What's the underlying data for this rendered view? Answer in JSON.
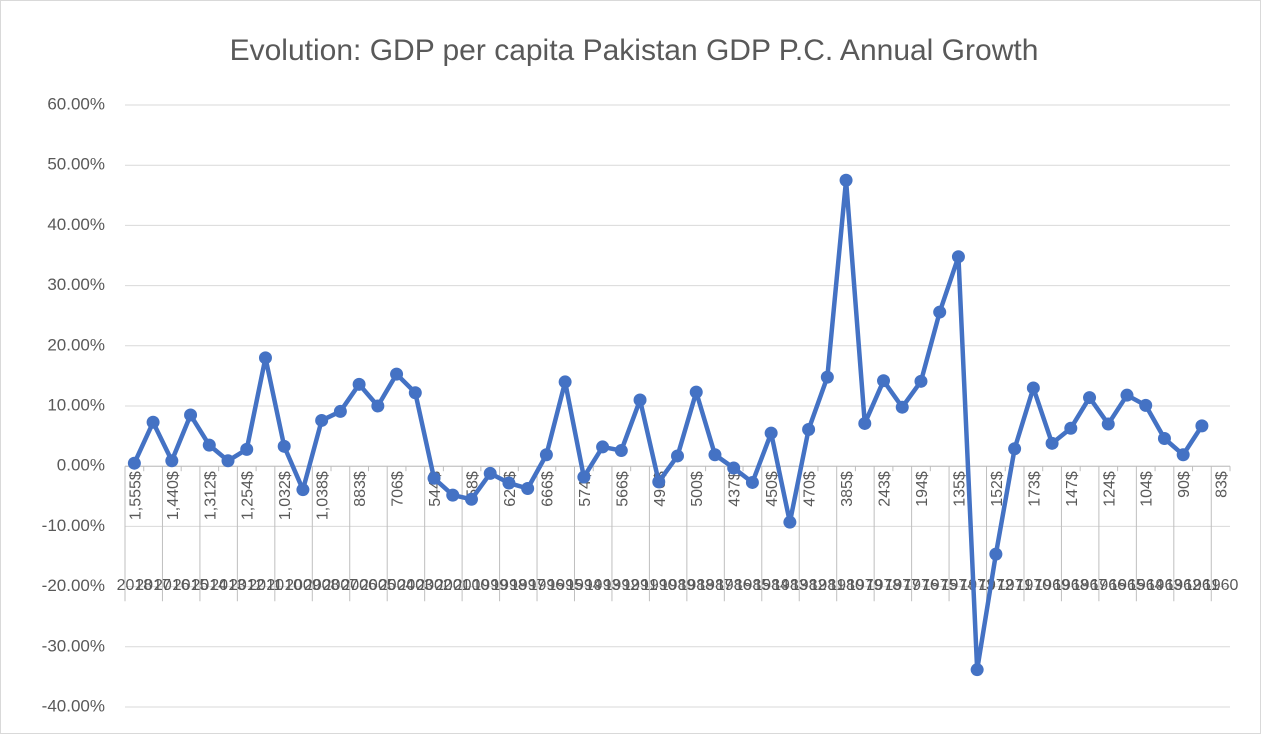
{
  "chart_data": {
    "type": "line",
    "title": "Evolution: GDP per capita Pakistan GDP P.C. Annual Growth",
    "categories": [
      "2018",
      "2017",
      "2016",
      "2015",
      "2014",
      "2013",
      "2012",
      "2011",
      "2010",
      "2009",
      "2008",
      "2007",
      "2006",
      "2005",
      "2004",
      "2003",
      "2002",
      "2001",
      "2000",
      "1999",
      "1998",
      "1997",
      "1996",
      "1995",
      "1994",
      "1993",
      "1992",
      "1991",
      "1990",
      "1989",
      "1988",
      "1987",
      "1986",
      "1985",
      "1984",
      "1983",
      "1982",
      "1981",
      "1980",
      "1979",
      "1978",
      "1977",
      "1976",
      "1975",
      "1974",
      "1973",
      "1972",
      "1971",
      "1970",
      "1969",
      "1968",
      "1967",
      "1966",
      "1965",
      "1964",
      "1963",
      "1962",
      "1961",
      "1960"
    ],
    "gdp_labels": [
      "1,555$",
      null,
      "1,440$",
      null,
      "1,312$",
      null,
      "1,254$",
      null,
      "1,032$",
      null,
      "1,038$",
      null,
      "883$",
      null,
      "706$",
      null,
      "544$",
      null,
      "58$",
      null,
      "624$",
      null,
      "666$",
      null,
      "574$",
      null,
      "566$",
      null,
      "496$",
      null,
      "500$",
      null,
      "437$",
      null,
      "450$",
      null,
      "470$",
      null,
      "385$",
      null,
      "243$",
      null,
      "194$",
      null,
      "135$",
      null,
      "152$",
      null,
      "173$",
      null,
      "147$",
      null,
      "124$",
      null,
      "104$",
      null,
      "90$",
      null,
      "83$"
    ],
    "series": [
      {
        "name": "GDP P.C. Annual Growth",
        "color": "#4472c4",
        "values": [
          0.5,
          7.3,
          0.9,
          8.5,
          3.5,
          0.9,
          2.8,
          18.0,
          3.3,
          -3.9,
          7.6,
          9.1,
          13.6,
          10.0,
          15.3,
          12.2,
          -2.0,
          -4.8,
          -5.5,
          -1.2,
          -2.8,
          -3.7,
          1.9,
          14.0,
          -1.8,
          3.2,
          2.6,
          11.0,
          -2.6,
          1.7,
          12.3,
          1.9,
          -0.3,
          -2.7,
          5.5,
          -9.3,
          6.1,
          14.8,
          47.5,
          7.1,
          14.2,
          9.8,
          14.1,
          25.6,
          34.8,
          -33.8,
          -14.6,
          2.9,
          13.0,
          3.8,
          6.3,
          11.4,
          7.0,
          11.8,
          10.1,
          4.6,
          1.9,
          6.7,
          null
        ]
      }
    ],
    "ylim": [
      -40,
      60
    ],
    "yticks": [
      {
        "value": -40,
        "label": "-40.00%"
      },
      {
        "value": -30,
        "label": "-30.00%"
      },
      {
        "value": -20,
        "label": "-20.00%"
      },
      {
        "value": -10,
        "label": "-10.00%"
      },
      {
        "value": 0,
        "label": "0.00%"
      },
      {
        "value": 10,
        "label": "10.00%"
      },
      {
        "value": 20,
        "label": "20.00%"
      },
      {
        "value": 30,
        "label": "30.00%"
      },
      {
        "value": 40,
        "label": "40.00%"
      },
      {
        "value": 50,
        "label": "50.00%"
      },
      {
        "value": 60,
        "label": "60.00%"
      }
    ],
    "grid": true
  }
}
